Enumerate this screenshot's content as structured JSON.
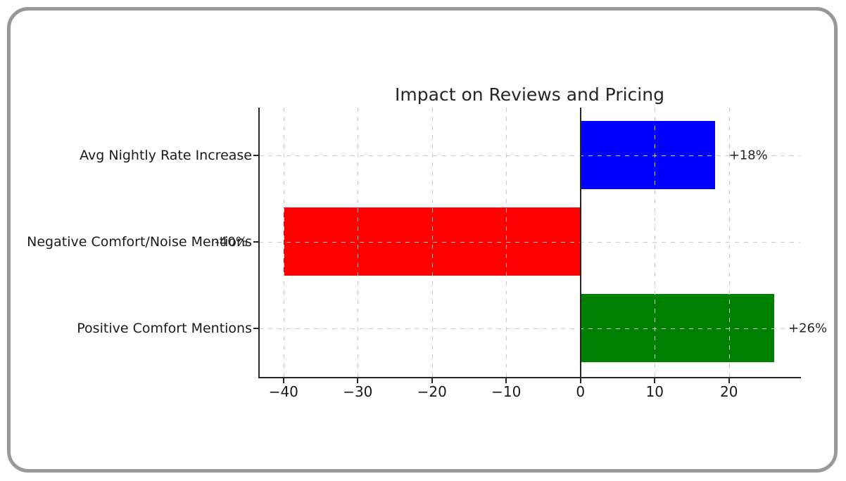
{
  "frame": {
    "border_color": "#999999",
    "background_color": "#ffffff"
  },
  "chart_data": {
    "type": "bar",
    "orientation": "horizontal",
    "title": "Impact on Reviews and Pricing",
    "categories": [
      "Avg Nightly Rate Increase",
      "Negative Comfort/Noise Mentions",
      "Positive Comfort Mentions"
    ],
    "values": [
      18,
      -40,
      26
    ],
    "bar_labels": [
      "+18%",
      "-40%",
      "+26%"
    ],
    "bar_colors": [
      "#0000ff",
      "#ff0000",
      "#008000"
    ],
    "x_tick_values": [
      -40,
      -30,
      -20,
      -10,
      0,
      10,
      20
    ],
    "x_tick_labels": [
      "−40",
      "−30",
      "−20",
      "−10",
      "0",
      "10",
      "20"
    ],
    "xlim": [
      -43.3,
      29.6
    ],
    "xlabel": "",
    "ylabel": "",
    "grid": "dashed, both axes, drawn above bars",
    "zero_line": true,
    "legend": "none",
    "colors": {
      "grid": "#cccccc",
      "spine": "#262626",
      "zero_line": "#262626",
      "text": "#1a1a1a"
    }
  }
}
